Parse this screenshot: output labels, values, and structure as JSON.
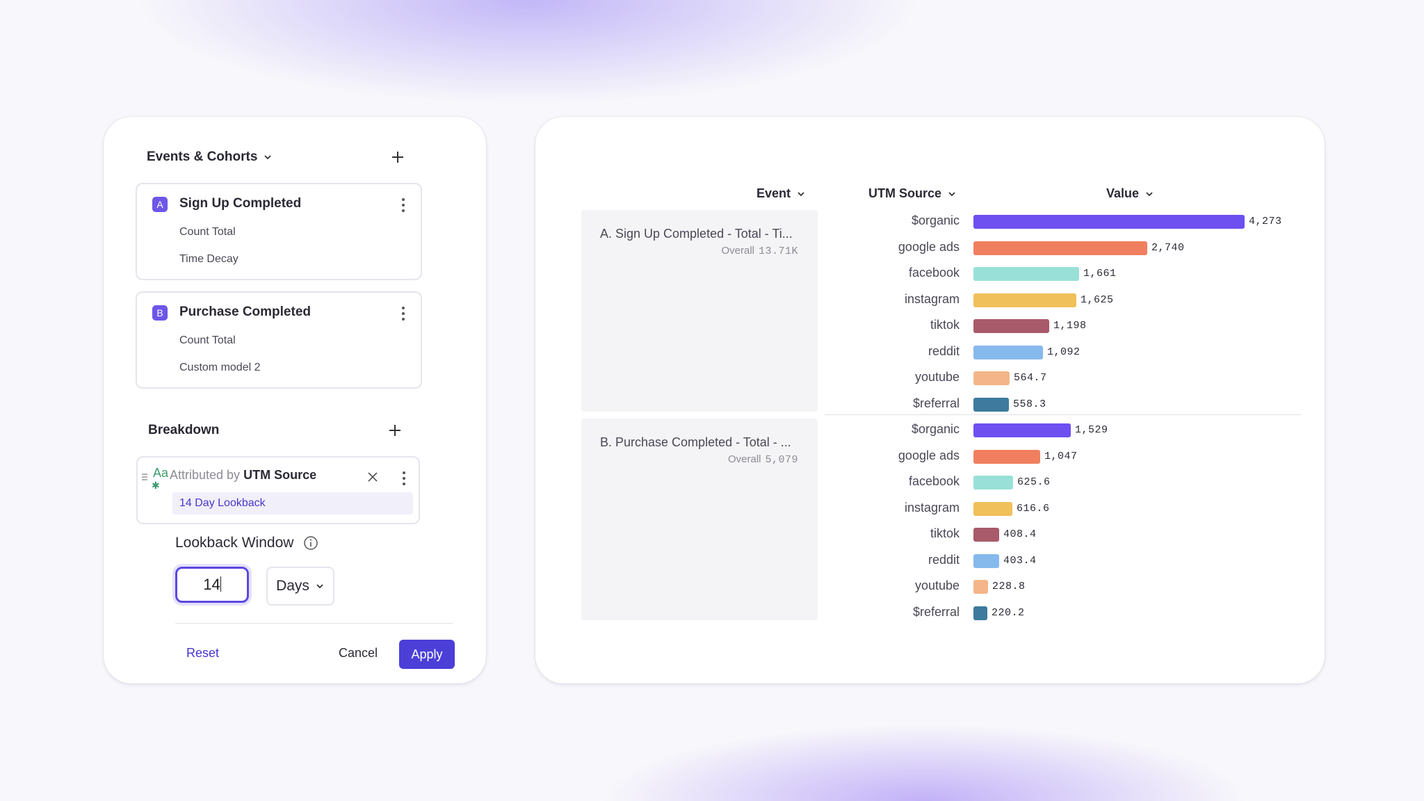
{
  "left_panel": {
    "events_title": "Events & Cohorts",
    "events": [
      {
        "badge": "A",
        "name": "Sign Up Completed",
        "measure": "Count Total",
        "model": "Time Decay"
      },
      {
        "badge": "B",
        "name": "Purchase Completed",
        "measure": "Count Total",
        "model": "Custom model 2"
      }
    ],
    "breakdown_title": "Breakdown",
    "breakdown": {
      "type_icon_text": "Aa",
      "prefix": "Attributed by",
      "property": "UTM Source",
      "lookback_pill": "14 Day Lookback"
    },
    "lookback_window": {
      "title": "Lookback Window",
      "value": "14",
      "unit": "Days"
    },
    "footer": {
      "reset": "Reset",
      "cancel": "Cancel",
      "apply": "Apply"
    }
  },
  "right_panel": {
    "columns": {
      "event": "Event",
      "utm_source": "UTM Source",
      "value": "Value"
    },
    "groups": [
      {
        "title": "A. Sign Up Completed - Total - Ti...",
        "overall_label": "Overall",
        "overall_value": "13.71K"
      },
      {
        "title": "B. Purchase Completed - Total - ...",
        "overall_label": "Overall",
        "overall_value": "5,079"
      }
    ]
  },
  "colors": {
    "accent": "#4b3fd8",
    "sources": {
      "$organic": "#6e4ff0",
      "google ads": "#f07f60",
      "facebook": "#99e0d8",
      "instagram": "#f0c05a",
      "tiktok": "#a85a6a",
      "reddit": "#86b9ec",
      "youtube": "#f4b689",
      "$referral": "#3d7a9e"
    }
  },
  "chart_data": {
    "type": "bar",
    "orientation": "horizontal",
    "xlim": [
      0,
      4273
    ],
    "categories": [
      "$organic",
      "google ads",
      "facebook",
      "instagram",
      "tiktok",
      "reddit",
      "youtube",
      "$referral"
    ],
    "series": [
      {
        "name": "A. Sign Up Completed - Total - Ti...",
        "values": [
          4273,
          2740,
          1661,
          1625,
          1198,
          1092,
          564.7,
          558.3
        ],
        "labels": [
          "4,273",
          "2,740",
          "1,661",
          "1,625",
          "1,198",
          "1,092",
          "564.7",
          "558.3"
        ]
      },
      {
        "name": "B. Purchase Completed - Total - ...",
        "values": [
          1529,
          1047,
          625.6,
          616.6,
          408.4,
          403.4,
          228.8,
          220.2
        ],
        "labels": [
          "1,529",
          "1,047",
          "625.6",
          "616.6",
          "408.4",
          "403.4",
          "228.8",
          "220.2"
        ]
      }
    ]
  }
}
